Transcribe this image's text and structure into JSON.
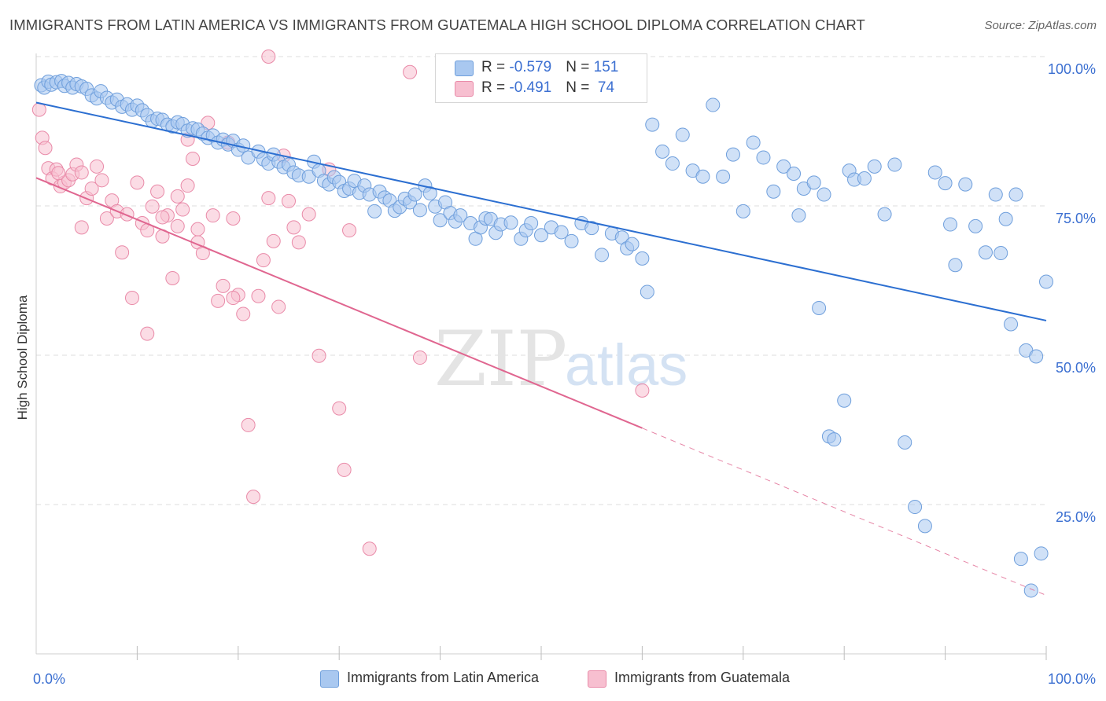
{
  "header": {
    "title": "IMMIGRANTS FROM LATIN AMERICA VS IMMIGRANTS FROM GUATEMALA HIGH SCHOOL DIPLOMA CORRELATION CHART",
    "source": "Source: ZipAtlas.com"
  },
  "watermark": {
    "zip": "ZIP",
    "atlas": "atlas"
  },
  "legend": {
    "rows": [
      {
        "r_label": "R = ",
        "r_value": "-0.579",
        "n_label": "N = ",
        "n_value": "151"
      },
      {
        "r_label": "R = ",
        "r_value": "-0.491",
        "n_label": "N = ",
        "n_value": " 74"
      }
    ]
  },
  "bottom_legend": {
    "series1": "Immigrants from Latin America",
    "series2": "Immigrants from Guatemala"
  },
  "colors": {
    "series1_fill": "#a9c8f0",
    "series1_stroke": "#6f9fdc",
    "series1_line": "#2c6fd1",
    "series2_fill": "#f7bfd0",
    "series2_stroke": "#e98aa8",
    "series2_line": "#e06690",
    "axis_text": "#3b6fd1",
    "grid": "#dcdcdc"
  },
  "chart_data": {
    "type": "scatter",
    "title": "IMMIGRANTS FROM LATIN AMERICA VS IMMIGRANTS FROM GUATEMALA HIGH SCHOOL DIPLOMA CORRELATION CHART",
    "xlabel": "",
    "ylabel": "High School Diploma",
    "xlim": [
      0,
      100
    ],
    "ylim": [
      0,
      100
    ],
    "x_tick_labels": [
      {
        "value": 0,
        "label": "0.0%"
      },
      {
        "value": 100,
        "label": "100.0%"
      }
    ],
    "y_tick_labels": [
      {
        "value": 25,
        "label": "25.0%"
      },
      {
        "value": 50,
        "label": "50.0%"
      },
      {
        "value": 75,
        "label": "75.0%"
      },
      {
        "value": 100,
        "label": "100.0%"
      }
    ],
    "grid": true,
    "legend_position": "top-center",
    "series": [
      {
        "name": "Immigrants from Latin America",
        "color": "#a9c8f0",
        "trend": {
          "x": [
            0,
            100
          ],
          "y": [
            92.3,
            55.8
          ]
        },
        "points": [
          [
            0.5,
            95.2
          ],
          [
            0.8,
            94.8
          ],
          [
            1.2,
            95.8
          ],
          [
            1.5,
            95.3
          ],
          [
            2.0,
            95.7
          ],
          [
            2.5,
            95.9
          ],
          [
            2.8,
            95.1
          ],
          [
            3.2,
            95.6
          ],
          [
            3.6,
            94.8
          ],
          [
            4.0,
            95.4
          ],
          [
            4.5,
            95.0
          ],
          [
            5.0,
            94.6
          ],
          [
            5.5,
            93.5
          ],
          [
            6.0,
            93.0
          ],
          [
            6.4,
            94.2
          ],
          [
            7.0,
            93.1
          ],
          [
            7.5,
            92.3
          ],
          [
            8.0,
            92.8
          ],
          [
            8.5,
            91.6
          ],
          [
            9.0,
            92.0
          ],
          [
            9.5,
            91.1
          ],
          [
            10.0,
            91.8
          ],
          [
            10.5,
            91.0
          ],
          [
            11.0,
            90.2
          ],
          [
            11.5,
            89.2
          ],
          [
            12.0,
            89.6
          ],
          [
            12.5,
            89.4
          ],
          [
            13.0,
            88.6
          ],
          [
            13.5,
            88.3
          ],
          [
            14.0,
            89.0
          ],
          [
            14.5,
            88.7
          ],
          [
            15.0,
            87.6
          ],
          [
            15.5,
            88.0
          ],
          [
            16.0,
            87.8
          ],
          [
            16.5,
            87.1
          ],
          [
            17.0,
            86.4
          ],
          [
            17.5,
            86.8
          ],
          [
            18.0,
            85.6
          ],
          [
            18.5,
            86.1
          ],
          [
            19.0,
            85.3
          ],
          [
            19.5,
            85.9
          ],
          [
            20.0,
            84.4
          ],
          [
            20.5,
            85.1
          ],
          [
            21.0,
            83.1
          ],
          [
            22.0,
            84.1
          ],
          [
            22.5,
            82.8
          ],
          [
            23.0,
            82.1
          ],
          [
            23.5,
            83.6
          ],
          [
            24.0,
            82.4
          ],
          [
            24.5,
            81.5
          ],
          [
            25.0,
            81.9
          ],
          [
            25.5,
            80.6
          ],
          [
            26.0,
            80.1
          ],
          [
            27.0,
            79.9
          ],
          [
            27.5,
            82.4
          ],
          [
            28.0,
            80.9
          ],
          [
            28.5,
            79.2
          ],
          [
            29.0,
            78.6
          ],
          [
            29.5,
            79.8
          ],
          [
            30.0,
            79.0
          ],
          [
            30.5,
            77.5
          ],
          [
            31.0,
            77.9
          ],
          [
            31.5,
            79.2
          ],
          [
            32.0,
            77.2
          ],
          [
            32.5,
            78.4
          ],
          [
            33.0,
            76.9
          ],
          [
            33.5,
            74.1
          ],
          [
            34.0,
            77.4
          ],
          [
            34.5,
            76.4
          ],
          [
            35.0,
            75.9
          ],
          [
            35.5,
            74.2
          ],
          [
            36.0,
            74.8
          ],
          [
            36.5,
            76.2
          ],
          [
            37.0,
            75.6
          ],
          [
            37.5,
            76.9
          ],
          [
            38.0,
            74.3
          ],
          [
            38.5,
            78.4
          ],
          [
            39.0,
            77.1
          ],
          [
            39.5,
            74.9
          ],
          [
            40.0,
            72.6
          ],
          [
            40.5,
            75.6
          ],
          [
            41.0,
            73.8
          ],
          [
            41.5,
            72.4
          ],
          [
            42.0,
            73.4
          ],
          [
            43.0,
            72.1
          ],
          [
            43.5,
            69.5
          ],
          [
            44.0,
            71.4
          ],
          [
            44.5,
            72.9
          ],
          [
            45.0,
            72.8
          ],
          [
            45.5,
            70.5
          ],
          [
            46.0,
            71.9
          ],
          [
            47.0,
            72.2
          ],
          [
            48.0,
            69.5
          ],
          [
            48.5,
            70.9
          ],
          [
            49.0,
            72.1
          ],
          [
            50.0,
            70.1
          ],
          [
            51.0,
            71.4
          ],
          [
            52.0,
            70.6
          ],
          [
            53.0,
            69.1
          ],
          [
            54.0,
            72.1
          ],
          [
            55.0,
            71.3
          ],
          [
            56.0,
            66.8
          ],
          [
            57.0,
            70.4
          ],
          [
            58.0,
            69.7
          ],
          [
            58.5,
            67.9
          ],
          [
            59.0,
            68.6
          ],
          [
            60.0,
            66.2
          ],
          [
            60.5,
            60.6
          ],
          [
            61.0,
            88.6
          ],
          [
            62.0,
            84.1
          ],
          [
            63.0,
            82.1
          ],
          [
            64.0,
            86.9
          ],
          [
            65.0,
            80.9
          ],
          [
            66.0,
            79.9
          ],
          [
            67.0,
            91.9
          ],
          [
            68.0,
            79.9
          ],
          [
            69.0,
            83.6
          ],
          [
            70.0,
            74.1
          ],
          [
            71.0,
            85.6
          ],
          [
            72.0,
            83.1
          ],
          [
            73.0,
            77.4
          ],
          [
            74.0,
            81.6
          ],
          [
            75.0,
            80.4
          ],
          [
            75.5,
            73.4
          ],
          [
            76.0,
            77.9
          ],
          [
            77.0,
            78.9
          ],
          [
            77.5,
            57.9
          ],
          [
            78.0,
            76.9
          ],
          [
            78.5,
            36.4
          ],
          [
            79.0,
            35.9
          ],
          [
            80.0,
            42.4
          ],
          [
            80.5,
            80.9
          ],
          [
            81.0,
            79.4
          ],
          [
            82.0,
            79.6
          ],
          [
            83.0,
            81.6
          ],
          [
            84.0,
            73.6
          ],
          [
            85.0,
            81.9
          ],
          [
            86.0,
            35.4
          ],
          [
            87.0,
            24.6
          ],
          [
            88.0,
            21.4
          ],
          [
            89.0,
            80.6
          ],
          [
            90.0,
            78.8
          ],
          [
            90.5,
            71.9
          ],
          [
            91.0,
            65.1
          ],
          [
            92.0,
            78.6
          ],
          [
            93.0,
            71.6
          ],
          [
            94.0,
            67.2
          ],
          [
            95.0,
            76.9
          ],
          [
            96.0,
            72.8
          ],
          [
            97.0,
            76.9
          ],
          [
            98.0,
            50.8
          ],
          [
            99.0,
            49.8
          ],
          [
            99.5,
            16.8
          ],
          [
            100.0,
            62.3
          ],
          [
            98.5,
            10.6
          ],
          [
            97.5,
            15.9
          ],
          [
            96.5,
            55.2
          ],
          [
            95.5,
            67.1
          ]
        ]
      },
      {
        "name": "Immigrants from Guatemala",
        "color": "#f7bfd0",
        "trend": {
          "x": [
            0,
            60
          ],
          "y": [
            79.7,
            37.8
          ]
        },
        "trend_dashed": {
          "x": [
            60,
            100
          ],
          "y": [
            37.8,
            9.8
          ]
        },
        "points": [
          [
            0.3,
            91.1
          ],
          [
            0.6,
            86.4
          ],
          [
            0.9,
            84.7
          ],
          [
            1.2,
            81.3
          ],
          [
            1.6,
            79.6
          ],
          [
            2.0,
            81.1
          ],
          [
            2.4,
            78.3
          ],
          [
            2.8,
            78.9
          ],
          [
            3.2,
            79.3
          ],
          [
            3.6,
            80.3
          ],
          [
            4.0,
            81.9
          ],
          [
            4.5,
            71.4
          ],
          [
            5.0,
            76.3
          ],
          [
            5.5,
            77.9
          ],
          [
            6.0,
            81.6
          ],
          [
            6.5,
            79.3
          ],
          [
            7.0,
            72.9
          ],
          [
            7.5,
            75.9
          ],
          [
            8.0,
            74.1
          ],
          [
            8.5,
            67.2
          ],
          [
            9.0,
            73.6
          ],
          [
            9.5,
            59.6
          ],
          [
            10.0,
            78.9
          ],
          [
            10.5,
            72.1
          ],
          [
            11.0,
            70.9
          ],
          [
            11.5,
            74.9
          ],
          [
            12.0,
            77.4
          ],
          [
            12.5,
            69.9
          ],
          [
            13.0,
            73.4
          ],
          [
            13.5,
            62.9
          ],
          [
            14.0,
            76.6
          ],
          [
            14.5,
            74.4
          ],
          [
            15.0,
            78.4
          ],
          [
            15.5,
            82.9
          ],
          [
            16.0,
            68.9
          ],
          [
            16.5,
            67.1
          ],
          [
            17.0,
            88.9
          ],
          [
            17.5,
            73.4
          ],
          [
            18.0,
            59.1
          ],
          [
            18.5,
            61.6
          ],
          [
            19.0,
            85.6
          ],
          [
            19.5,
            72.9
          ],
          [
            20.0,
            60.1
          ],
          [
            20.5,
            56.9
          ],
          [
            21.0,
            38.3
          ],
          [
            21.5,
            26.3
          ],
          [
            22.0,
            59.9
          ],
          [
            22.5,
            65.9
          ],
          [
            23.0,
            76.3
          ],
          [
            23.5,
            69.1
          ],
          [
            24.0,
            58.1
          ],
          [
            24.5,
            83.4
          ],
          [
            25.0,
            75.8
          ],
          [
            25.5,
            71.4
          ],
          [
            26.0,
            68.9
          ],
          [
            27.0,
            73.6
          ],
          [
            28.0,
            49.9
          ],
          [
            29.0,
            81.1
          ],
          [
            30.0,
            41.1
          ],
          [
            30.5,
            30.8
          ],
          [
            31.0,
            70.9
          ],
          [
            33.0,
            17.6
          ],
          [
            37.0,
            97.4
          ],
          [
            38.0,
            49.6
          ],
          [
            23.0,
            100.0
          ],
          [
            11.0,
            53.6
          ],
          [
            12.5,
            73.1
          ],
          [
            14.0,
            71.6
          ],
          [
            15.0,
            86.1
          ],
          [
            16.0,
            71.1
          ],
          [
            19.5,
            59.6
          ],
          [
            2.2,
            80.5
          ],
          [
            4.5,
            80.6
          ],
          [
            60.0,
            44.1
          ]
        ]
      }
    ]
  }
}
